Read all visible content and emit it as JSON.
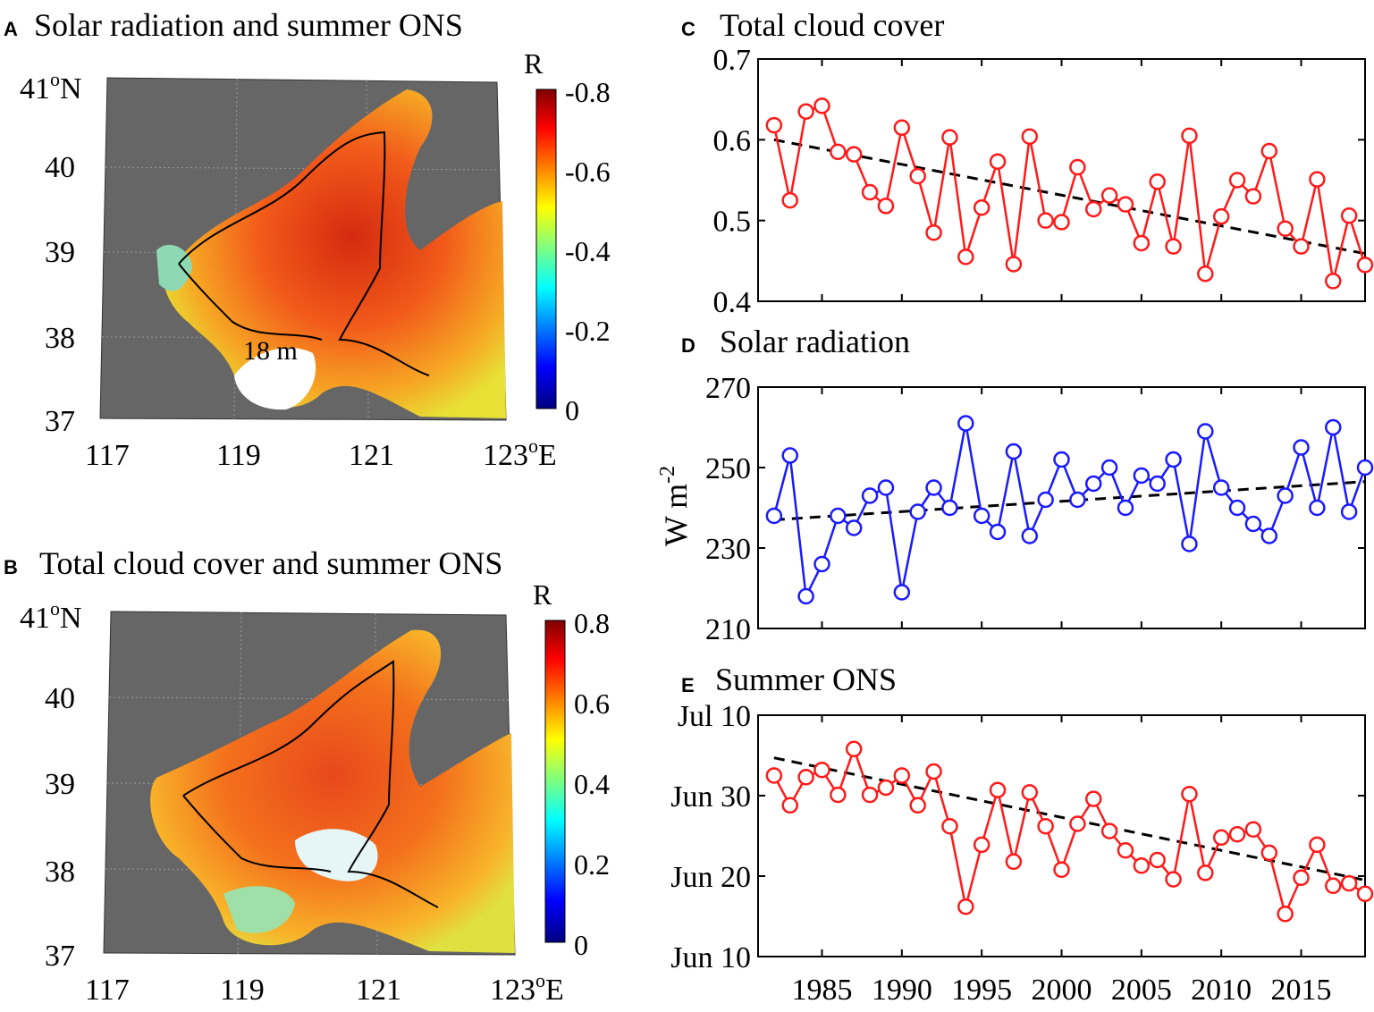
{
  "colors": {
    "land": "#666666",
    "red_series": "#ff1a1a",
    "blue_series": "#1a1aff",
    "trend": "#000000"
  },
  "maps": [
    {
      "letter": "A",
      "title": "Solar radiation and summer ONS",
      "colorbar_label": "R",
      "colorbar_ticks": [
        "-0.8",
        "-0.6",
        "-0.4",
        "-0.2",
        "0"
      ],
      "lat_ticks": [
        "40",
        "39",
        "38",
        "37"
      ],
      "lat_top": "41",
      "lat_top_suffix": "o",
      "lat_top_unit": "N",
      "lon_ticks": [
        "117",
        "119",
        "121",
        "123"
      ],
      "lon_suffix": "o",
      "lon_unit": "E",
      "contour_label": "18 m"
    },
    {
      "letter": "B",
      "title": "Total cloud cover and summer ONS",
      "colorbar_label": "R",
      "colorbar_ticks": [
        "0.8",
        "0.6",
        "0.4",
        "0.2",
        "0"
      ],
      "lat_ticks": [
        "40",
        "39",
        "38",
        "37"
      ],
      "lat_top": "41",
      "lat_top_suffix": "o",
      "lat_top_unit": "N",
      "lon_ticks": [
        "117",
        "119",
        "121",
        "123"
      ],
      "lon_suffix": "o",
      "lon_unit": "E"
    }
  ],
  "chart_data": [
    {
      "type": "line",
      "letter": "C",
      "title": "Total cloud cover",
      "ylabel": "",
      "ylim": [
        0.4,
        0.7
      ],
      "yticks": [
        "0.7",
        "0.6",
        "0.5",
        "0.4"
      ],
      "xlim": [
        1981,
        2019
      ],
      "x": [
        1982,
        1983,
        1984,
        1985,
        1986,
        1987,
        1988,
        1989,
        1990,
        1991,
        1992,
        1993,
        1994,
        1995,
        1996,
        1997,
        1998,
        1999,
        2000,
        2001,
        2002,
        2003,
        2004,
        2005,
        2006,
        2007,
        2008,
        2009,
        2010,
        2011,
        2012,
        2013,
        2014,
        2015,
        2016,
        2017,
        2018,
        2019
      ],
      "values": [
        0.618,
        0.525,
        0.635,
        0.642,
        0.585,
        0.582,
        0.535,
        0.518,
        0.615,
        0.555,
        0.485,
        0.603,
        0.455,
        0.516,
        0.573,
        0.446,
        0.604,
        0.5,
        0.498,
        0.566,
        0.514,
        0.531,
        0.52,
        0.472,
        0.548,
        0.468,
        0.605,
        0.434,
        0.505,
        0.55,
        0.53,
        0.586,
        0.49,
        0.468,
        0.551,
        0.425,
        0.506,
        0.445
      ],
      "trend": [
        0.6,
        0.459
      ]
    },
    {
      "type": "line",
      "letter": "D",
      "title": "Solar radiation",
      "ylabel": "W m",
      "ylabel_sup": "-2",
      "ylim": [
        210,
        270
      ],
      "yticks": [
        "270",
        "250",
        "230",
        "210"
      ],
      "xlim": [
        1981,
        2019
      ],
      "x": [
        1982,
        1983,
        1984,
        1985,
        1986,
        1987,
        1988,
        1989,
        1990,
        1991,
        1992,
        1993,
        1994,
        1995,
        1996,
        1997,
        1998,
        1999,
        2000,
        2001,
        2002,
        2003,
        2004,
        2005,
        2006,
        2007,
        2008,
        2009,
        2010,
        2011,
        2012,
        2013,
        2014,
        2015,
        2016,
        2017,
        2018,
        2019
      ],
      "values": [
        238,
        253,
        218,
        226,
        238,
        235,
        243,
        245,
        219,
        239,
        245,
        240,
        261,
        238,
        234,
        254,
        233,
        242,
        252,
        242,
        246,
        250,
        240,
        248,
        246,
        252,
        231,
        259,
        245,
        240,
        236,
        233,
        243,
        255,
        240,
        260,
        239,
        250
      ],
      "trend": [
        237,
        246.5
      ]
    },
    {
      "type": "line",
      "letter": "E",
      "title": "Summer ONS",
      "ylabel": "",
      "ylim": [
        0,
        30
      ],
      "yticks": [
        "Jul 10",
        "Jun 30",
        "Jun 20",
        "Jun 10"
      ],
      "xlim": [
        1981,
        2019
      ],
      "xticks": [
        "1985",
        "1990",
        "1995",
        "2000",
        "2005",
        "2010",
        "2015"
      ],
      "x": [
        1982,
        1983,
        1984,
        1985,
        1986,
        1987,
        1988,
        1989,
        1990,
        1991,
        1992,
        1993,
        1994,
        1995,
        1996,
        1997,
        1998,
        1999,
        2000,
        2001,
        2002,
        2003,
        2004,
        2005,
        2006,
        2007,
        2008,
        2009,
        2010,
        2011,
        2012,
        2013,
        2014,
        2015,
        2016,
        2017,
        2018,
        2019
      ],
      "values": [
        22.5,
        18.8,
        22.3,
        23.2,
        20.1,
        25.8,
        20.1,
        21.0,
        22.5,
        18.8,
        23.0,
        16.2,
        6.2,
        13.9,
        20.7,
        11.8,
        20.4,
        16.2,
        10.8,
        16.5,
        19.6,
        15.6,
        13.2,
        11.3,
        12.0,
        9.6,
        20.2,
        10.4,
        14.8,
        15.2,
        15.8,
        12.9,
        5.3,
        9.8,
        13.9,
        8.8,
        9.1,
        7.8
      ],
      "trend": [
        24.7,
        9.5
      ]
    }
  ]
}
